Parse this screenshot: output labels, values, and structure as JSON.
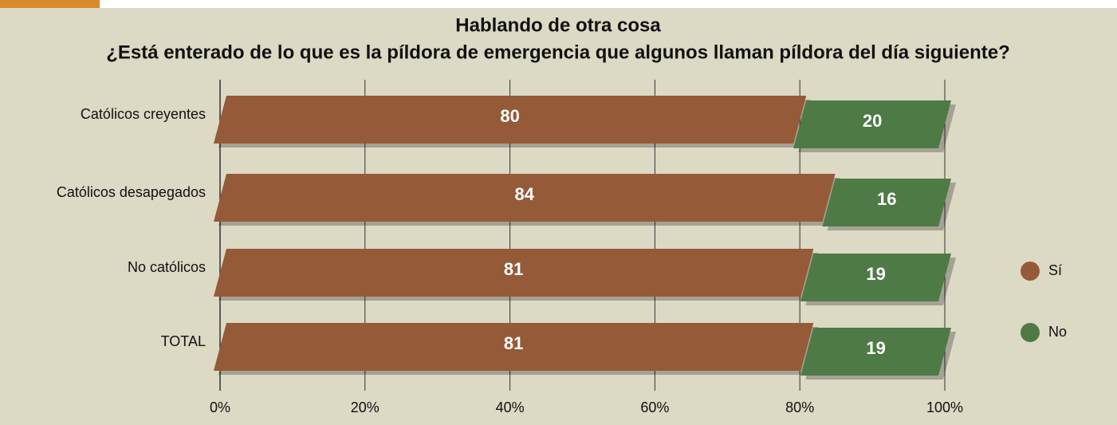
{
  "chart_data": {
    "type": "stacked-bar-horizontal",
    "title": "Hablando de otra cosa",
    "subtitle": "¿Está enterado de lo que es la píldora de emergencia que algunos llaman píldora del día siguiente?",
    "categories": [
      "Católicos creyentes",
      "Católicos desapegados",
      "No católicos",
      "TOTAL"
    ],
    "series": [
      {
        "name": "Sí",
        "color": "#955a38",
        "values": [
          80,
          84,
          81,
          81
        ]
      },
      {
        "name": "No",
        "color": "#4e7a45",
        "values": [
          20,
          16,
          19,
          19
        ]
      }
    ],
    "xlim": [
      0,
      100
    ],
    "xticks": [
      {
        "value": 0,
        "label": "0%"
      },
      {
        "value": 20,
        "label": "20%"
      },
      {
        "value": 40,
        "label": "40%"
      },
      {
        "value": 60,
        "label": "60%"
      },
      {
        "value": 80,
        "label": "80%"
      },
      {
        "value": 100,
        "label": "100%"
      }
    ],
    "grid": true,
    "legend": "right"
  }
}
